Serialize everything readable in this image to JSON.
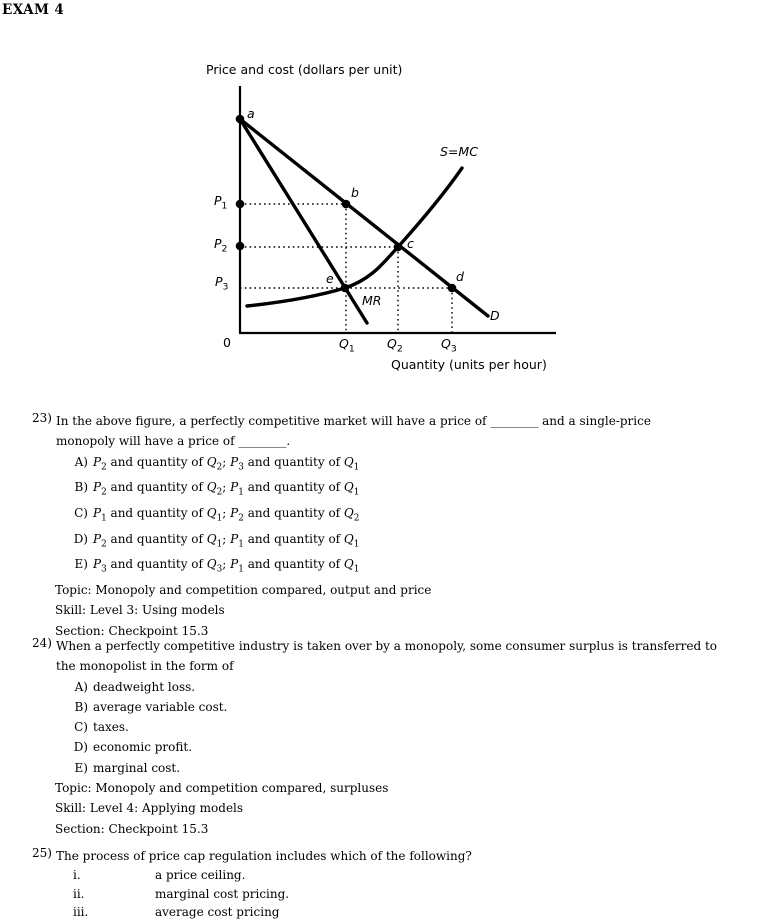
{
  "header": {
    "title": "EXAM 4"
  },
  "figure": {
    "y_axis_title": "Price and cost (dollars per unit)",
    "x_axis_title": "Quantity (units per hour)",
    "origin_label": "0",
    "supply_label": "S=MC",
    "demand_label": "D",
    "marginal_revenue_label": "MR",
    "points": {
      "a": "a",
      "b": "b",
      "c": "c",
      "d": "d",
      "e": "e"
    },
    "price_ticks": [
      "*P*~1~",
      "*P*~2~",
      "*P*~3~"
    ],
    "quantity_ticks": [
      "*Q*~1~",
      "*Q*~2~",
      "*Q*~3~"
    ]
  },
  "questions": [
    {
      "number": "23)",
      "lines": [
        "In the above figure, a perfectly competitive market will have a price of ________ and a single-price",
        "monopoly will have a price of ________."
      ],
      "choices": [
        {
          "letter": "A)",
          "text": "*P*~2~ and quantity of *Q*~2~; *P*~3~ and quantity of *Q*~1~"
        },
        {
          "letter": "B)",
          "text": "*P*~2~ and quantity of *Q*~2~; *P*~1~ and quantity of *Q*~1~"
        },
        {
          "letter": "C)",
          "text": "*P*~1~ and quantity of *Q*~1~; *P*~2~ and quantity of *Q*~2~"
        },
        {
          "letter": "D)",
          "text": "*P*~2~ and quantity of *Q*~1~; *P*~1~ and quantity of *Q*~1~"
        },
        {
          "letter": "E)",
          "text": "*P*~3~ and quantity of *Q*~3~; *P*~1~ and quantity of *Q*~1~"
        }
      ],
      "topic": "Topic: Monopoly and competition compared, output and price",
      "skill": "Skill: Level 3: Using models",
      "section": "Section: Checkpoint 15.3"
    },
    {
      "number": "24)",
      "lines": [
        "When a perfectly competitive industry is taken over by a monopoly, some consumer surplus is transferred to",
        "the monopolist in the form of"
      ],
      "choices": [
        {
          "letter": "A)",
          "text": "deadweight loss."
        },
        {
          "letter": "B)",
          "text": "average variable cost."
        },
        {
          "letter": "C)",
          "text": "taxes."
        },
        {
          "letter": "D)",
          "text": "economic profit."
        },
        {
          "letter": "E)",
          "text": "marginal cost."
        }
      ],
      "topic": "Topic: Monopoly and competition compared, surpluses",
      "skill": "Skill: Level 4: Applying models",
      "section": "Section: Checkpoint 15.3"
    },
    {
      "number": "25)",
      "lines": [
        "The process of price cap regulation includes which of the following?"
      ],
      "items": [
        {
          "numeral": "i.",
          "text": "a price ceiling."
        },
        {
          "numeral": "ii.",
          "text": "marginal cost pricing."
        },
        {
          "numeral": "iii.",
          "text": "average cost pricing"
        }
      ]
    }
  ]
}
